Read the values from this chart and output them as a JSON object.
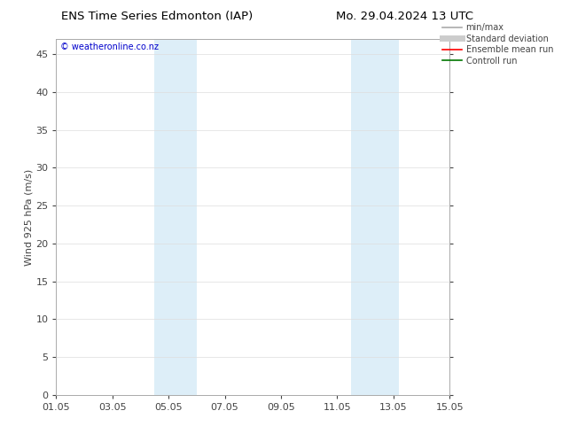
{
  "title_left": "ENS Time Series Edmonton (IAP)",
  "title_right": "Mo. 29.04.2024 13 UTC",
  "ylabel": "Wind 925 hPa (m/s)",
  "watermark": "© weatheronline.co.nz",
  "watermark_color": "#0000cc",
  "xlim_dates": [
    "01.05",
    "03.05",
    "05.05",
    "07.05",
    "09.05",
    "11.05",
    "13.05",
    "15.05"
  ],
  "x_tick_positions": [
    0,
    2,
    4,
    6,
    8,
    10,
    12,
    14
  ],
  "xlim_min": 0,
  "xlim_max": 14,
  "ylim_min": 0,
  "ylim_max": 47,
  "yticks": [
    0,
    5,
    10,
    15,
    20,
    25,
    30,
    35,
    40,
    45
  ],
  "shaded_bands": [
    {
      "xmin": 3.5,
      "xmax": 5.0,
      "color": "#ddeef8"
    },
    {
      "xmin": 10.5,
      "xmax": 12.2,
      "color": "#ddeef8"
    }
  ],
  "legend_items": [
    {
      "label": "min/max",
      "color": "#aaaaaa",
      "lw": 1.2,
      "ls": "-"
    },
    {
      "label": "Standard deviation",
      "color": "#cccccc",
      "lw": 5,
      "ls": "-"
    },
    {
      "label": "Ensemble mean run",
      "color": "#ff0000",
      "lw": 1.2,
      "ls": "-"
    },
    {
      "label": "Controll run",
      "color": "#007700",
      "lw": 1.2,
      "ls": "-"
    }
  ],
  "bg_color": "#ffffff",
  "plot_bg_color": "#ffffff",
  "grid_color": "#dddddd",
  "tick_label_color": "#444444",
  "title_color": "#000000",
  "font_size": 8,
  "title_font_size": 9.5
}
